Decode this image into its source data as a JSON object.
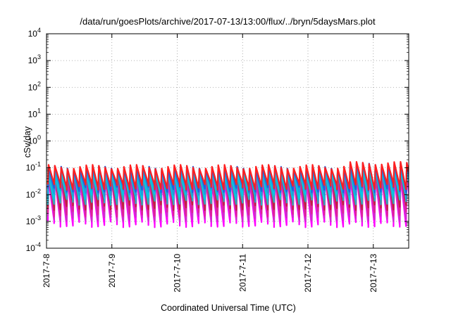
{
  "chart_data": {
    "type": "line",
    "title": "/data/run/goesPlots/archive/2017-07-13/13:00/flux/../bryn/5daysMars.plot",
    "xlabel": "Coordinated Universal Time (UTC)",
    "ylabel": "cSv/day",
    "y_scale": "log",
    "ylim": [
      0.0001,
      10000
    ],
    "xlim": [
      "2017-07-08T00:00",
      "2017-07-13T13:00"
    ],
    "x_ticks": [
      "2017-7-8",
      "2017-7-9",
      "2017-7-10",
      "2017-7-11",
      "2017-7-12",
      "2017-7-13"
    ],
    "y_ticks": [
      {
        "mantissa": "10",
        "exp": "-4"
      },
      {
        "mantissa": "10",
        "exp": "-3"
      },
      {
        "mantissa": "10",
        "exp": "-2"
      },
      {
        "mantissa": "10",
        "exp": "-1"
      },
      {
        "mantissa": "10",
        "exp": "0"
      },
      {
        "mantissa": "10",
        "exp": "1"
      },
      {
        "mantissa": "10",
        "exp": "2"
      },
      {
        "mantissa": "10",
        "exp": "3"
      },
      {
        "mantissa": "10",
        "exp": "4"
      }
    ],
    "grid": true,
    "legend": "none",
    "pattern": {
      "description": "sawtooth, about 10 cycles per day",
      "cycles_per_day": 10.4,
      "peak_value": 0.11,
      "trough_value": 0.0015
    },
    "series": [
      {
        "color": "#ff00ff",
        "peak": 0.035,
        "trough": 0.0008
      },
      {
        "color": "#cc2fcc",
        "peak": 0.04,
        "trough": 0.0013
      },
      {
        "color": "#e0209a",
        "peak": 0.05,
        "trough": 0.002
      },
      {
        "color": "#c02040",
        "peak": 0.07,
        "trough": 0.0035
      },
      {
        "color": "#2ab0c0",
        "peak": 0.06,
        "trough": 0.0055
      },
      {
        "color": "#00c8e8",
        "peak": 0.075,
        "trough": 0.0085
      },
      {
        "color": "#1e9edc",
        "peak": 0.085,
        "trough": 0.012
      },
      {
        "color": "#2060e0",
        "peak": 0.1,
        "trough": 0.016
      },
      {
        "color": "#ff2020",
        "peak": 0.11,
        "trough": 0.02
      }
    ]
  }
}
